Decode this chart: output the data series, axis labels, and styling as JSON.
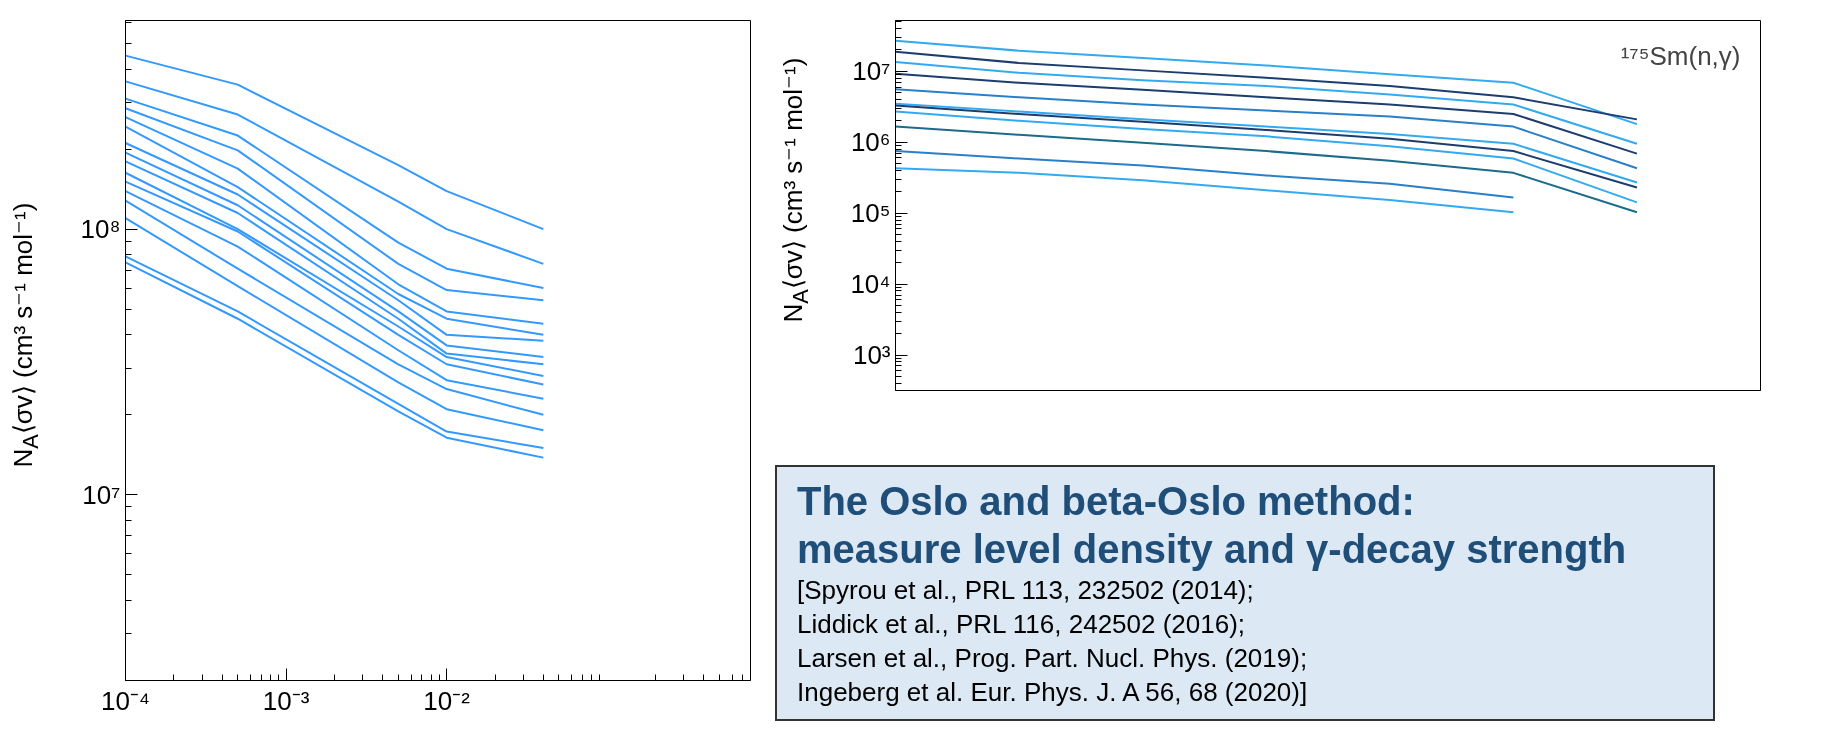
{
  "chart_data": [
    {
      "type": "line",
      "ylabel": "N$_{A}$⟨σv⟩ (cm³ s⁻¹ mol⁻¹)",
      "log": "xy",
      "grid": false,
      "marker": "none",
      "line_style": "solid",
      "x": [
        0.0001,
        0.0005,
        0.005,
        0.01,
        0.04
      ],
      "xlim": [
        0.0001,
        0.78
      ],
      "ylim": [
        2000000,
        610000000
      ],
      "xticks": [
        {
          "value": 0.0001,
          "label": "10⁻⁴"
        },
        {
          "value": 0.001,
          "label": "10⁻³"
        },
        {
          "value": 0.01,
          "label": "10⁻²"
        }
      ],
      "yticks": [
        {
          "value": 10000000,
          "label": "10⁷"
        },
        {
          "value": 100000000,
          "label": "10⁸"
        }
      ],
      "series": [
        {
          "color": "#3399ff",
          "values": [
            450000000,
            350000000,
            174000000,
            139000000,
            100000000
          ]
        },
        {
          "color": "#3399ff",
          "values": [
            360000000,
            270000000,
            127000000,
            100000000,
            74000000
          ]
        },
        {
          "color": "#3399ff",
          "values": [
            310000000,
            225000000,
            89000000,
            71000000,
            60000000
          ]
        },
        {
          "color": "#3399ff",
          "values": [
            285000000,
            198000000,
            74000000,
            59000000,
            54000000
          ]
        },
        {
          "color": "#3399ff",
          "values": [
            264000000,
            169000000,
            62000000,
            49000000,
            44000000
          ]
        },
        {
          "color": "#3399ff",
          "values": [
            243000000,
            144000000,
            57000000,
            46000000,
            40000000
          ]
        },
        {
          "color": "#3399ff",
          "values": [
            211000000,
            135000000,
            54000000,
            40000000,
            38000000
          ]
        },
        {
          "color": "#3399ff",
          "values": [
            194000000,
            123000000,
            49000000,
            36500000,
            33000000
          ]
        },
        {
          "color": "#3399ff",
          "values": [
            180000000,
            115000000,
            46000000,
            34000000,
            31000000
          ]
        },
        {
          "color": "#3399ff",
          "values": [
            163000000,
            100000000,
            43000000,
            33000000,
            28000000
          ]
        },
        {
          "color": "#3399ff",
          "values": [
            151000000,
            98000000,
            40000000,
            31000000,
            26000000
          ]
        },
        {
          "color": "#3399ff",
          "values": [
            139000000,
            86000000,
            35000000,
            27000000,
            23000000
          ]
        },
        {
          "color": "#3399ff",
          "values": [
            128000000,
            71000000,
            31000000,
            25000000,
            20000000
          ]
        },
        {
          "color": "#3399ff",
          "values": [
            110000000,
            61000000,
            26500000,
            21000000,
            17500000
          ]
        },
        {
          "color": "#3399ff",
          "values": [
            79000000,
            49000000,
            22000000,
            17300000,
            15000000
          ]
        },
        {
          "color": "#3399ff",
          "values": [
            75000000,
            46000000,
            20600000,
            16400000,
            13800000
          ]
        }
      ]
    },
    {
      "type": "line",
      "ylabel": "N$_{A}$⟨σv⟩ (cm³ s⁻¹ mol⁻¹)",
      "log": "y",
      "grid": false,
      "marker": "none",
      "line_style": "solid",
      "tick_labels": "y",
      "categories": [
        null,
        null,
        null,
        null,
        null,
        null,
        null,
        null
      ],
      "ylim": [
        316,
        52000000
      ],
      "yticks": [
        {
          "value": 1000,
          "label": "10³"
        },
        {
          "value": 10000,
          "label": "10⁴"
        },
        {
          "value": 100000,
          "label": "10⁵"
        },
        {
          "value": 1000000,
          "label": "10⁶"
        },
        {
          "value": 10000000,
          "label": "10⁷"
        }
      ],
      "annotations": [
        "¹⁷⁵Sm(n,γ)",
        "The Oslo and beta-Oslo method:",
        "measure level density and γ-decay strength",
        "[Spyrou et al., PRL 113, 232502 (2014);",
        "Liddick et al., PRL 116, 242502 (2016);",
        "Larsen et al., Prog. Part. Nucl. Phys. (2019);",
        "Ingeberg et al. Eur. Phys. J. A 56, 68 (2020)]"
      ],
      "series": [
        {
          "color": "#33aaf0",
          "values": [
            27000000,
            19500000,
            15400000,
            12100000,
            9100000,
            6900000,
            1800000,
            null
          ]
        },
        {
          "color": "#1c3d6e",
          "values": [
            18900000,
            13100000,
            10300000,
            8100000,
            6200000,
            4300000,
            2100000,
            null
          ]
        },
        {
          "color": "#33aaf0",
          "values": [
            13500000,
            9500000,
            7500000,
            6200000,
            4700000,
            3400000,
            950000,
            null
          ]
        },
        {
          "color": "#1c3d6e",
          "values": [
            9200000,
            6900000,
            5500000,
            4300000,
            3400000,
            2500000,
            690000,
            null
          ]
        },
        {
          "color": "#2a7fc9",
          "values": [
            5600000,
            4300000,
            3400000,
            2800000,
            2300000,
            1660000,
            430000,
            null
          ]
        },
        {
          "color": "#33aaf0",
          "values": [
            3500000,
            2700000,
            2100000,
            1660000,
            1310000,
            950000,
            270000,
            null
          ]
        },
        {
          "color": "#1c3d6e",
          "values": [
            3300000,
            2500000,
            1950000,
            1490000,
            1120000,
            750000,
            230000,
            null
          ]
        },
        {
          "color": "#33aaf0",
          "values": [
            2700000,
            2000000,
            1530000,
            1210000,
            880000,
            590000,
            142000,
            null
          ]
        },
        {
          "color": "#1b6b8a",
          "values": [
            1660000,
            1270000,
            980000,
            750000,
            550000,
            370000,
            103000,
            null
          ]
        },
        {
          "color": "#2a7fc9",
          "values": [
            750000,
            590000,
            470000,
            340000,
            260000,
            166000,
            null,
            null
          ]
        },
        {
          "color": "#33aaf0",
          "values": [
            430000,
            370000,
            290000,
            210000,
            153000,
            103000,
            null,
            null
          ]
        }
      ]
    }
  ]
}
